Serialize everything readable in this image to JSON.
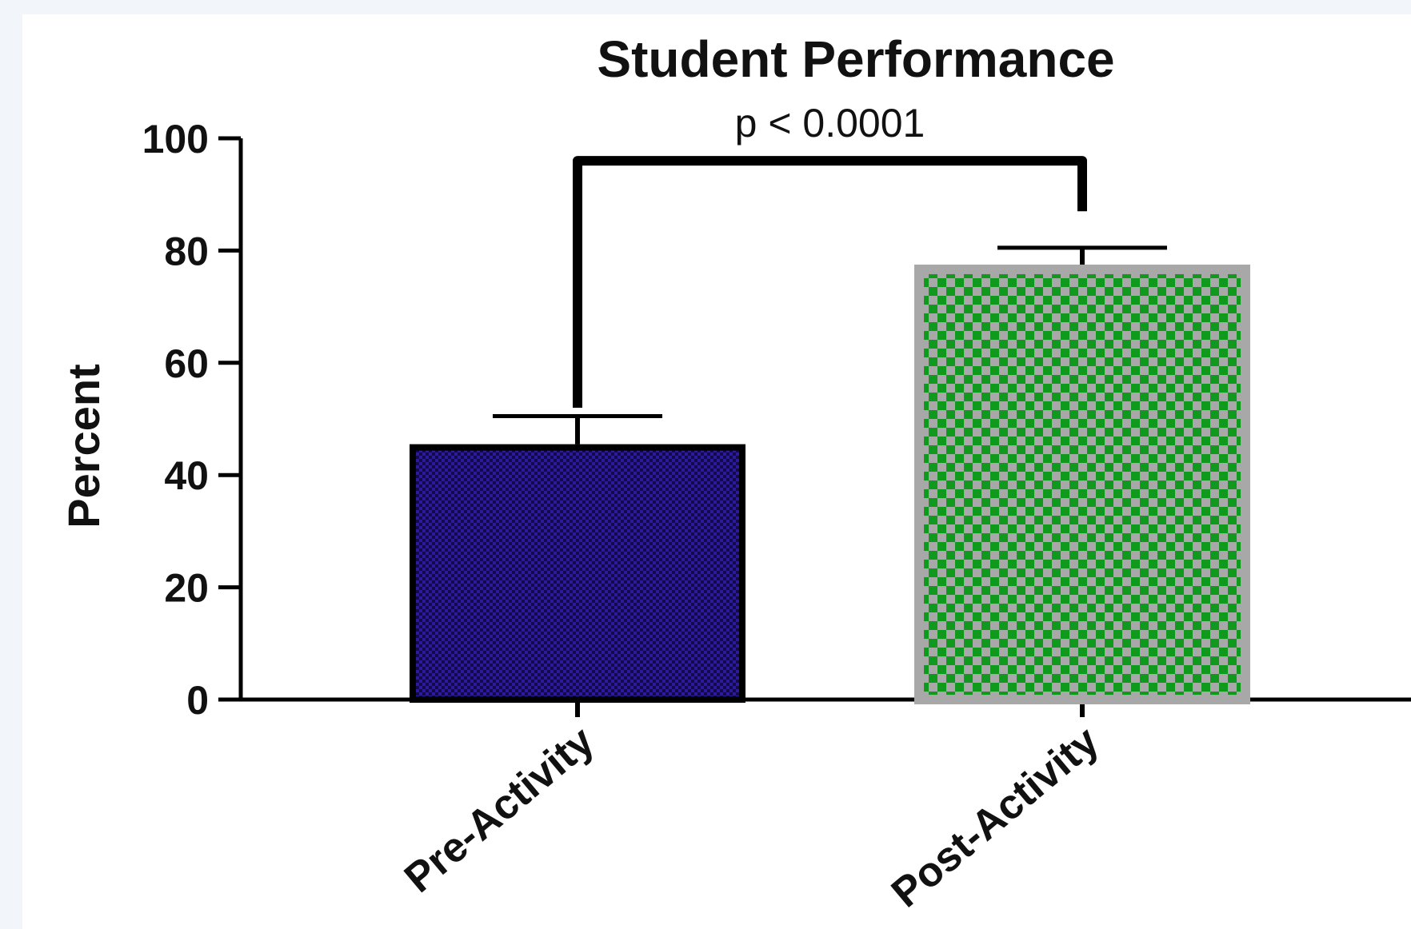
{
  "chart_data": {
    "type": "bar",
    "title": "Student Performance",
    "xlabel": "",
    "ylabel": "Percent",
    "ylim": [
      0,
      100
    ],
    "yticks": [
      0,
      20,
      40,
      60,
      80,
      100
    ],
    "categories": [
      "Pre-Activity",
      "Post-Activity"
    ],
    "values": [
      45.5,
      77.5
    ],
    "error_upper": [
      50.5,
      80.5
    ],
    "bar_colors": [
      "#2b1a9e",
      "#0f9a1e"
    ],
    "bar_edge_colors": [
      "#000000",
      "#a8a8a8"
    ],
    "bar_patterns": [
      "fine-checker",
      "checker"
    ],
    "comparison": {
      "between": [
        "Pre-Activity",
        "Post-Activity"
      ],
      "label": "p < 0.0001",
      "bracket_value": 96,
      "left_end_value": 52,
      "right_end_value": 87
    },
    "grid": false,
    "legend": false
  }
}
